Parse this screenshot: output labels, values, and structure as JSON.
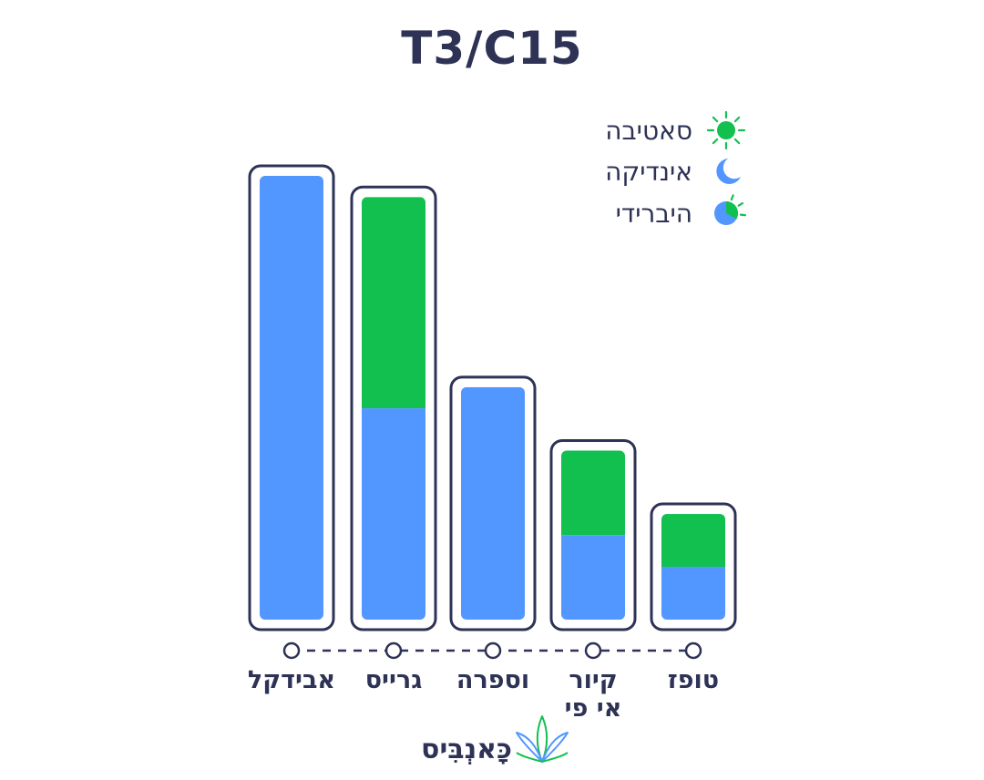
{
  "chart_data": {
    "type": "bar",
    "stacked": true,
    "title": "T3/C15",
    "categories": [
      {
        "lines": [
          "אבידקל"
        ]
      },
      {
        "lines": [
          "גרייס"
        ]
      },
      {
        "lines": [
          "וספרה"
        ]
      },
      {
        "lines": [
          "קיור",
          "אי פי"
        ]
      },
      {
        "lines": [
          "טופז"
        ]
      }
    ],
    "series": [
      {
        "name": "אינדיקה",
        "color": "#5296ff",
        "values": [
          21.0,
          10.0,
          11.0,
          4.0,
          2.5
        ]
      },
      {
        "name": "סאטיבה",
        "color": "#12c050",
        "values": [
          0,
          10.0,
          0,
          4.0,
          2.5
        ]
      }
    ],
    "legend": [
      {
        "label": "סאטיבה",
        "icon": "sun-icon",
        "color": "#12c050"
      },
      {
        "label": "אינדיקה",
        "icon": "moon-icon",
        "color": "#5296ff"
      },
      {
        "label": "היברידי",
        "icon": "hybrid-icon",
        "color": "#5296ff"
      }
    ],
    "legend_position": "top-right",
    "ylim": [
      0,
      21.0
    ],
    "grid": false,
    "xlabel": "",
    "ylabel": ""
  },
  "brand": {
    "name": "כָּאנְבִּיס",
    "icon": "cannabis-leaf-icon"
  },
  "colors": {
    "outline": "#2e3356",
    "indica": "#5296ff",
    "sativa": "#12c050"
  }
}
